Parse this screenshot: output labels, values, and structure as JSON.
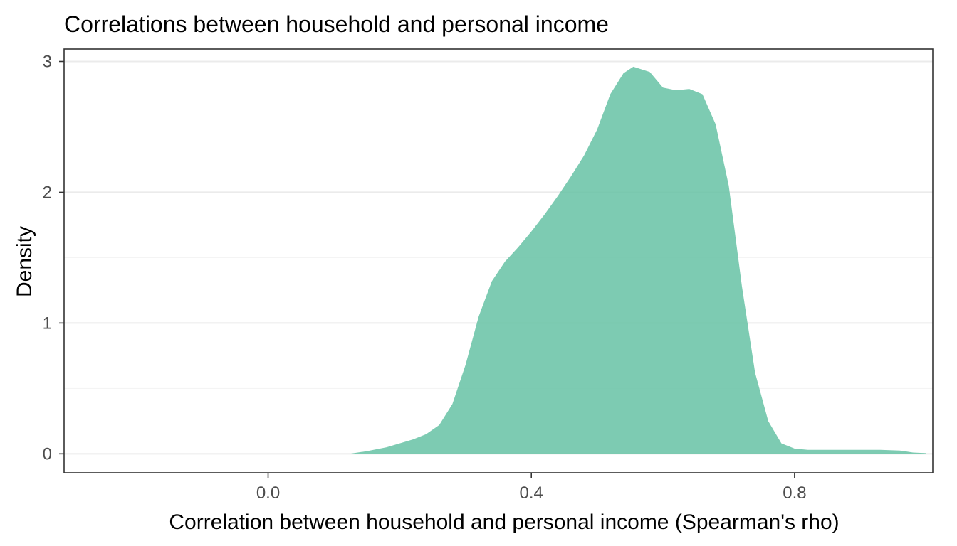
{
  "chart_data": {
    "type": "area",
    "title": "Correlations between household and personal income",
    "xlabel": "Correlation between household and personal income (Spearman's rho)",
    "ylabel": "Density",
    "xlim": [
      -0.31,
      1.01
    ],
    "ylim": [
      -0.145,
      3.095
    ],
    "x_ticks": [
      0.0,
      0.4,
      0.8
    ],
    "x_tick_labels": [
      "0.0",
      "0.4",
      "0.8"
    ],
    "y_ticks": [
      0,
      1,
      2,
      3
    ],
    "y_tick_labels": [
      "0",
      "1",
      "2",
      "3"
    ],
    "grid": true,
    "legend": "none",
    "fill_color": "#66C2A5",
    "fill_opacity": 0.85,
    "series": [
      {
        "x": [
          0.123,
          0.15,
          0.18,
          0.2,
          0.22,
          0.24,
          0.26,
          0.28,
          0.3,
          0.32,
          0.34,
          0.36,
          0.38,
          0.4,
          0.42,
          0.44,
          0.46,
          0.48,
          0.5,
          0.52,
          0.54,
          0.555,
          0.58,
          0.6,
          0.62,
          0.64,
          0.66,
          0.68,
          0.7,
          0.72,
          0.74,
          0.76,
          0.78,
          0.8,
          0.82,
          0.85,
          0.88,
          0.9,
          0.93,
          0.96,
          0.98,
          1.0
        ],
        "y": [
          0.0,
          0.02,
          0.05,
          0.08,
          0.11,
          0.15,
          0.22,
          0.38,
          0.68,
          1.05,
          1.32,
          1.47,
          1.58,
          1.7,
          1.83,
          1.97,
          2.12,
          2.28,
          2.48,
          2.75,
          2.91,
          2.96,
          2.92,
          2.8,
          2.78,
          2.79,
          2.75,
          2.52,
          2.05,
          1.28,
          0.62,
          0.25,
          0.08,
          0.04,
          0.03,
          0.03,
          0.03,
          0.03,
          0.03,
          0.025,
          0.01,
          0.005
        ]
      }
    ]
  }
}
